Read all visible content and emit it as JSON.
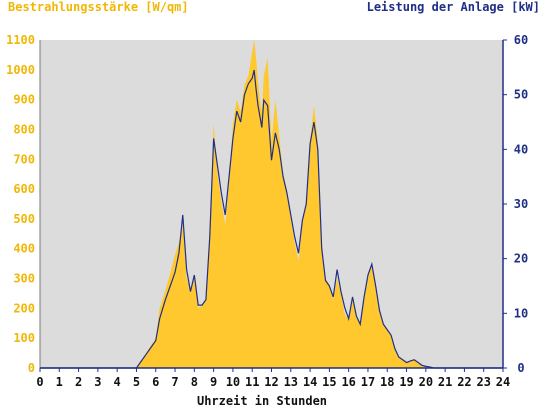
{
  "chart_data": {
    "type": "area",
    "left_axis_label": "Bestrahlungsstärke [W/qm]",
    "right_axis_label": "Leistung der Anlage [kW]",
    "xlabel": "Uhrzeit in Stunden",
    "xlim": [
      0,
      24
    ],
    "ylim_left": [
      0,
      1100
    ],
    "ylim_right": [
      0,
      60
    ],
    "x_ticks": [
      "0",
      "1",
      "2",
      "3",
      "4",
      "5",
      "6",
      "7",
      "8",
      "9",
      "10",
      "11",
      "12",
      "13",
      "14",
      "15",
      "16",
      "17",
      "18",
      "19",
      "20",
      "21",
      "22",
      "23",
      "24"
    ],
    "y_ticks_left": [
      "0",
      "100",
      "200",
      "300",
      "400",
      "500",
      "600",
      "700",
      "800",
      "900",
      "1000",
      "1100"
    ],
    "y_ticks_right": [
      "0",
      "10",
      "20",
      "30",
      "40",
      "50",
      "60"
    ],
    "series": [
      {
        "name": "Bestrahlungsstärke [W/qm]",
        "axis": "left",
        "style": "filled-area",
        "color": "#ffc82e",
        "x": [
          0,
          5.0,
          5.2,
          5.5,
          5.8,
          6.0,
          6.2,
          6.5,
          6.8,
          7.0,
          7.2,
          7.4,
          7.6,
          7.8,
          8.0,
          8.2,
          8.4,
          8.6,
          8.8,
          9.0,
          9.2,
          9.4,
          9.6,
          9.8,
          10.0,
          10.2,
          10.4,
          10.6,
          10.8,
          11.0,
          11.1,
          11.2,
          11.3,
          11.4,
          11.5,
          11.6,
          11.8,
          12.0,
          12.2,
          12.4,
          12.6,
          12.8,
          13.0,
          13.2,
          13.4,
          13.6,
          13.8,
          14.0,
          14.2,
          14.4,
          14.6,
          14.8,
          15.0,
          15.2,
          15.4,
          15.6,
          15.8,
          16.0,
          16.2,
          16.4,
          16.6,
          16.8,
          17.0,
          17.2,
          17.4,
          17.6,
          17.8,
          18.0,
          18.2,
          18.4,
          18.6,
          18.8,
          19.0,
          19.2,
          19.4,
          19.6,
          19.8,
          20.0,
          20.2,
          20.4,
          24
        ],
        "y": [
          0,
          0,
          20,
          50,
          80,
          100,
          200,
          260,
          330,
          380,
          420,
          480,
          300,
          260,
          300,
          200,
          210,
          230,
          480,
          820,
          650,
          560,
          480,
          620,
          820,
          900,
          860,
          950,
          980,
          1060,
          1100,
          1040,
          960,
          900,
          860,
          980,
          1040,
          760,
          900,
          780,
          650,
          600,
          500,
          420,
          360,
          480,
          560,
          760,
          880,
          760,
          400,
          300,
          280,
          230,
          300,
          250,
          180,
          160,
          230,
          170,
          150,
          230,
          300,
          350,
          270,
          190,
          150,
          130,
          110,
          60,
          40,
          25,
          20,
          25,
          30,
          15,
          10,
          5,
          3,
          0,
          0
        ]
      },
      {
        "name": "Leistung der Anlage [kW]",
        "axis": "right",
        "style": "line",
        "color": "#1f2f86",
        "x": [
          0,
          5.0,
          5.2,
          5.5,
          5.8,
          6.0,
          6.2,
          6.5,
          6.8,
          7.0,
          7.2,
          7.4,
          7.6,
          7.8,
          8.0,
          8.2,
          8.4,
          8.6,
          8.8,
          9.0,
          9.2,
          9.4,
          9.6,
          9.8,
          10.0,
          10.2,
          10.4,
          10.6,
          10.8,
          11.0,
          11.1,
          11.2,
          11.3,
          11.4,
          11.5,
          11.6,
          11.8,
          12.0,
          12.2,
          12.4,
          12.6,
          12.8,
          13.0,
          13.2,
          13.4,
          13.6,
          13.8,
          14.0,
          14.2,
          14.4,
          14.6,
          14.8,
          15.0,
          15.2,
          15.4,
          15.6,
          15.8,
          16.0,
          16.2,
          16.4,
          16.6,
          16.8,
          17.0,
          17.2,
          17.4,
          17.6,
          17.8,
          18.0,
          18.2,
          18.4,
          18.6,
          18.8,
          19.0,
          19.2,
          19.4,
          19.6,
          19.8,
          20.0,
          20.2,
          20.4,
          24
        ],
        "y": [
          0,
          0,
          1,
          2.5,
          4,
          5,
          9,
          12.5,
          15.5,
          17.5,
          21,
          28,
          18,
          14,
          17,
          11.5,
          11.5,
          12.5,
          24,
          42,
          37,
          32,
          28,
          35,
          42,
          47,
          45,
          50,
          52,
          53,
          54.5,
          51,
          48,
          46,
          44,
          49,
          48,
          38,
          43,
          40,
          35,
          32,
          28,
          24,
          21,
          27,
          30,
          41,
          45,
          40,
          22,
          16,
          15,
          13,
          18,
          14,
          11,
          9,
          13,
          9.5,
          8,
          13,
          17,
          19,
          15,
          10.5,
          8,
          7,
          6,
          3.5,
          2,
          1.5,
          1,
          1.3,
          1.5,
          1,
          0.5,
          0.3,
          0.2,
          0,
          0
        ]
      }
    ],
    "plot_background": "#dcdcdc",
    "grid": false,
    "legend": "none"
  }
}
